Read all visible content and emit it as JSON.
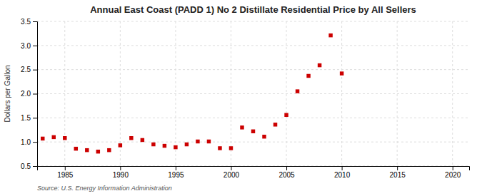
{
  "chart_data": {
    "type": "scatter",
    "title": "Annual East Coast (PADD 1) No 2 Distillate Residential Price by All Sellers",
    "ylabel": "Dollars per Gallon",
    "source": "Source: U.S. Energy Information Administration",
    "x": [
      1983,
      1984,
      1985,
      1986,
      1987,
      1988,
      1989,
      1990,
      1991,
      1992,
      1993,
      1994,
      1995,
      1996,
      1997,
      1998,
      1999,
      2000,
      2001,
      2002,
      2003,
      2004,
      2005,
      2006,
      2007,
      2008,
      2009,
      2010
    ],
    "values": [
      1.07,
      1.1,
      1.08,
      0.86,
      0.83,
      0.8,
      0.83,
      0.93,
      1.08,
      1.04,
      0.95,
      0.92,
      0.89,
      0.95,
      1.01,
      1.01,
      0.87,
      0.87,
      1.3,
      1.22,
      1.11,
      1.36,
      1.56,
      2.05,
      2.37,
      2.59,
      3.21,
      2.42
    ],
    "color": "#cc0000",
    "marker": "square",
    "xlim": [
      1982.5,
      2021.5
    ],
    "ylim": [
      0.5,
      3.5
    ],
    "xticks": [
      1985,
      1990,
      1995,
      2000,
      2005,
      2010,
      2015,
      2020
    ],
    "yticks": [
      0.5,
      {
        "value": 1.0,
        "label": "1.0"
      },
      1.5,
      {
        "value": 2.0,
        "label": "2.0"
      },
      2.5,
      {
        "value": 3.0,
        "label": "3.0"
      },
      3.5
    ],
    "grid": true
  }
}
